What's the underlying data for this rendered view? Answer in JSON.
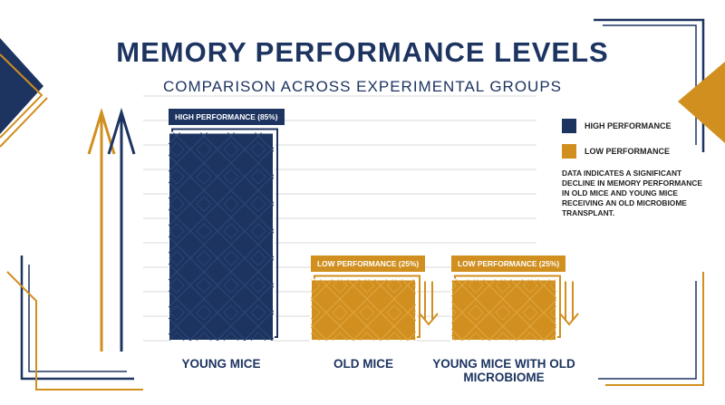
{
  "colors": {
    "navy": "#1d3461",
    "gold": "#d08f1f",
    "grid": "#d9d9d9"
  },
  "chart_data": {
    "type": "bar",
    "title": "MEMORY PERFORMANCE LEVELS",
    "subtitle": "COMPARISON ACROSS EXPERIMENTAL GROUPS",
    "categories": [
      "YOUNG MICE",
      "OLD MICE",
      "YOUNG MICE WITH OLD MICROBIOME"
    ],
    "values": [
      85,
      25,
      25
    ],
    "units": "%",
    "bar_levels": [
      "HIGH PERFORMANCE",
      "LOW PERFORMANCE",
      "LOW PERFORMANCE"
    ],
    "data_labels": [
      "HIGH PERFORMANCE (85%)",
      "LOW PERFORMANCE (25%)",
      "LOW PERFORMANCE (25%)"
    ],
    "ylim": [
      0,
      100
    ],
    "grid": true,
    "legend": {
      "position": "right",
      "items": [
        {
          "label": "HIGH PERFORMANCE",
          "color": "#1d3461"
        },
        {
          "label": "LOW PERFORMANCE",
          "color": "#d08f1f"
        }
      ]
    },
    "annotation": "DATA INDICATES A SIGNIFICANT DECLINE IN MEMORY PERFORMANCE IN OLD MICE AND YOUNG MICE RECEIVING AN OLD MICROBIOME TRANSPLANT."
  }
}
